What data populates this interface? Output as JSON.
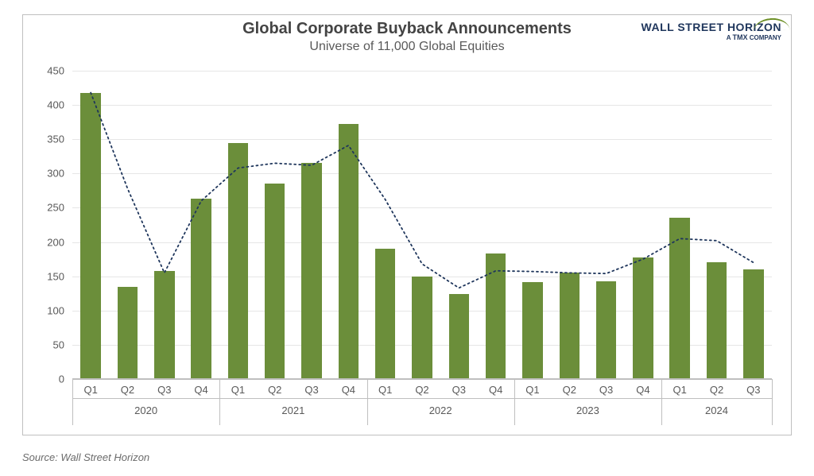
{
  "chart": {
    "type": "bar_with_line",
    "title": "Global Corporate Buyback Announcements",
    "subtitle": "Universe of 11,000 Global Equities",
    "title_fontsize": 20,
    "subtitle_fontsize": 16,
    "title_color": "#444444",
    "subtitle_color": "#595959",
    "background_color": "#ffffff",
    "border_color": "#bfbfbf",
    "grid_color": "#e6e6e6",
    "axis_label_color": "#595959",
    "axis_label_fontsize": 13,
    "bar_color": "#6b8e3a",
    "bar_width_ratio": 0.55,
    "line_color": "#1f365c",
    "line_dash": "2 4",
    "line_width": 1.8,
    "ylim": [
      0,
      450
    ],
    "ytick_step": 50,
    "yticks": [
      0,
      50,
      100,
      150,
      200,
      250,
      300,
      350,
      400,
      450
    ],
    "groups": [
      {
        "year": "2020",
        "quarters": [
          "Q1",
          "Q2",
          "Q3",
          "Q4"
        ]
      },
      {
        "year": "2021",
        "quarters": [
          "Q1",
          "Q2",
          "Q3",
          "Q4"
        ]
      },
      {
        "year": "2022",
        "quarters": [
          "Q1",
          "Q2",
          "Q3",
          "Q4"
        ]
      },
      {
        "year": "2023",
        "quarters": [
          "Q1",
          "Q2",
          "Q3",
          "Q4"
        ]
      },
      {
        "year": "2024",
        "quarters": [
          "Q1",
          "Q2",
          "Q3"
        ]
      }
    ],
    "categories": [
      "Q1",
      "Q2",
      "Q3",
      "Q4",
      "Q1",
      "Q2",
      "Q3",
      "Q4",
      "Q1",
      "Q2",
      "Q3",
      "Q4",
      "Q1",
      "Q2",
      "Q3",
      "Q4",
      "Q1",
      "Q2",
      "Q3"
    ],
    "bar_values": [
      418,
      135,
      158,
      263,
      344,
      285,
      316,
      372,
      190,
      150,
      124,
      183,
      142,
      156,
      143,
      178,
      236,
      170,
      160
    ],
    "line_values": [
      418,
      278,
      155,
      260,
      308,
      315,
      312,
      341,
      262,
      168,
      133,
      158,
      157,
      155,
      154,
      175,
      205,
      202,
      170
    ]
  },
  "logo": {
    "main": "WALL STREET HORIZON",
    "sub_prefix": "A ",
    "sub_brand": "TMX",
    "sub_suffix": " COMPANY",
    "main_color": "#1f365c",
    "arc_color": "#6b8e23"
  },
  "source": {
    "text": "Source: Wall Street Horizon",
    "color": "#6b6b6b",
    "fontsize": 13
  }
}
